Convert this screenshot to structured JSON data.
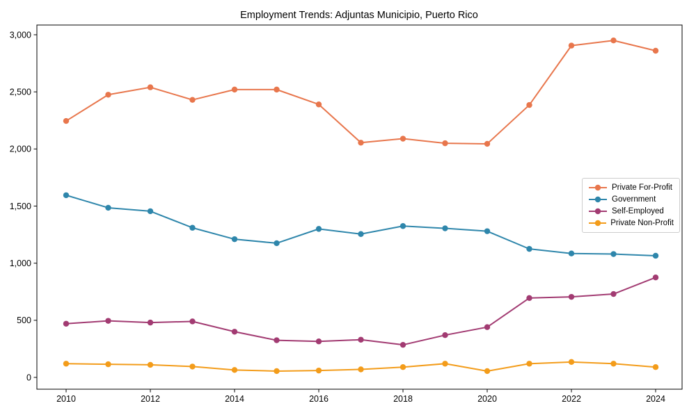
{
  "chart_data": {
    "type": "line",
    "title": "Employment Trends: Adjuntas Municipio, Puerto Rico",
    "xlabel": "",
    "ylabel": "",
    "x": [
      2010,
      2011,
      2012,
      2013,
      2014,
      2015,
      2016,
      2017,
      2018,
      2019,
      2020,
      2021,
      2022,
      2023,
      2024
    ],
    "series": [
      {
        "name": "Private For-Profit",
        "color": "#e8764c",
        "values": [
          2245,
          2475,
          2540,
          2430,
          2520,
          2520,
          2390,
          2055,
          2090,
          2050,
          2045,
          2385,
          2905,
          2950,
          2860
        ]
      },
      {
        "name": "Government",
        "color": "#2e86ab",
        "values": [
          1595,
          1485,
          1455,
          1310,
          1210,
          1175,
          1300,
          1255,
          1325,
          1305,
          1280,
          1125,
          1085,
          1080,
          1065
        ]
      },
      {
        "name": "Self-Employed",
        "color": "#a23b72",
        "values": [
          470,
          495,
          480,
          490,
          400,
          325,
          315,
          330,
          285,
          370,
          440,
          695,
          705,
          730,
          875
        ]
      },
      {
        "name": "Private Non-Profit",
        "color": "#f39c1a",
        "values": [
          120,
          115,
          110,
          95,
          65,
          55,
          60,
          70,
          90,
          120,
          55,
          120,
          135,
          120,
          90
        ]
      }
    ],
    "ylim": [
      0,
      3000
    ],
    "yticks": [
      0,
      500,
      1000,
      1500,
      2000,
      2500,
      3000
    ],
    "ytick_labels": [
      "0",
      "500",
      "1,000",
      "1,500",
      "2,000",
      "2,500",
      "3,000"
    ],
    "xticks": [
      2010,
      2012,
      2014,
      2016,
      2018,
      2020,
      2022,
      2024
    ],
    "xtick_labels": [
      "2010",
      "2012",
      "2014",
      "2016",
      "2018",
      "2020",
      "2022",
      "2024"
    ],
    "legend_position": "center right",
    "grid": false,
    "axis_color": "#000000",
    "background_color": "#ffffff"
  }
}
